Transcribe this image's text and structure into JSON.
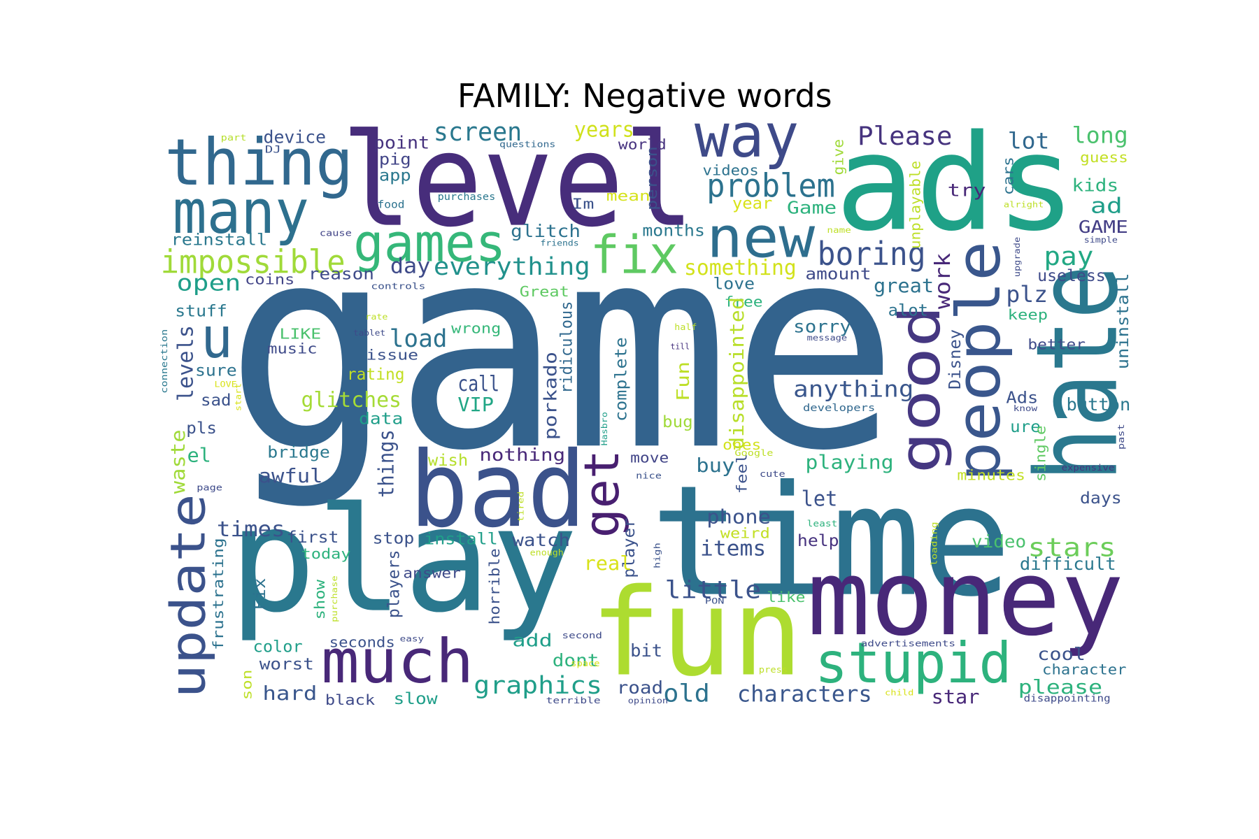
{
  "chart_data": {
    "type": "wordcloud",
    "title": "FAMILY: Negative words",
    "words": [
      "game",
      "level",
      "ads",
      "time",
      "play",
      "fun",
      "money",
      "bad",
      "hate",
      "people",
      "good",
      "thing",
      "many",
      "way",
      "games",
      "new",
      "fix",
      "u",
      "get",
      "update",
      "much",
      "stupid",
      "impossible",
      "problem",
      "boring",
      "screen",
      "Please",
      "lot",
      "long",
      "years",
      "point",
      "device",
      "pig",
      "app",
      "videos",
      "world",
      "person",
      "give",
      "guess",
      "kids",
      "try",
      "cars",
      "Im",
      "mean",
      "year",
      "Game",
      "ad",
      "GAME",
      "unplayable",
      "glitch",
      "months",
      "reinstall",
      "pay",
      "day",
      "everything",
      "something",
      "open",
      "coins",
      "reason",
      "amount",
      "work",
      "great",
      "plz",
      "useless",
      "uninstall",
      "love",
      "Great",
      "free",
      "stuff",
      "alot",
      "keep",
      "levels",
      "LIKE",
      "music",
      "wrong",
      "load",
      "issue",
      "sorry",
      "disappointed",
      "ridiculous",
      "porkado",
      "complete",
      "Fun",
      "Disney",
      "better",
      "sure",
      "rating",
      "call",
      "VIP",
      "anything",
      "glitches",
      "sad",
      "Ads",
      "button",
      "data",
      "bug",
      "ure",
      "pls",
      "waste",
      "things",
      "el",
      "bridge",
      "nothing",
      "wish",
      "move",
      "buy",
      "playing",
      "ones",
      "single",
      "awful",
      "minutes",
      "days",
      "feel",
      "phone",
      "let",
      "weird",
      "times",
      "first",
      "stop",
      "install",
      "watch",
      "items",
      "help",
      "video",
      "stars",
      "today",
      "frustrating",
      "player",
      "real",
      "little",
      "difficult",
      "answer",
      "players",
      "horrible",
      "Fix",
      "show",
      "like",
      "add",
      "color",
      "seconds",
      "bit",
      "dont",
      "cool",
      "character",
      "worst",
      "graphics",
      "road",
      "old",
      "characters",
      "please",
      "star",
      "hard",
      "black",
      "slow",
      "son",
      "part",
      "DJ",
      "questions",
      "purchases",
      "food",
      "cause",
      "friends",
      "controls",
      "name",
      "alright",
      "simple",
      "upgrade",
      "rate",
      "tablet",
      "half",
      "till",
      "message",
      "connection",
      "LOVE",
      "start",
      "developers",
      "know",
      "Hasbro",
      "Google",
      "past",
      "cute",
      "expensive",
      "nice",
      "page",
      "tired",
      "least",
      "enough",
      "high",
      "loading",
      "PON",
      "purchase",
      "second",
      "easy",
      "advertisements",
      "space",
      "press",
      "child",
      "terrible",
      "opinion",
      "disappointing"
    ],
    "colors": [
      "#33638d",
      "#472d7b",
      "#1fa187",
      "#2c728e",
      "#2a788e",
      "#addc30",
      "#482878",
      "#3b528b",
      "#2a788e",
      "#39568c",
      "#453781",
      "#31688e",
      "#2d708e",
      "#3e4a89",
      "#35b779",
      "#2e6e8e",
      "#5ec962",
      "#31688e",
      "#481f70",
      "#3b528b",
      "#482878",
      "#2db27d",
      "#a0da39",
      "#2c728e",
      "#3b528b",
      "#2a788e",
      "#46337e",
      "#31688e",
      "#4ac16d",
      "#d0e11c",
      "#46327e",
      "#3b528b",
      "#414487",
      "#2a788e",
      "#2c728e",
      "#46327e",
      "#3b528b",
      "#a0da39",
      "#c2df23",
      "#2db27d",
      "#482878",
      "#2c728e",
      "#3b528b",
      "#d5e21a",
      "#d8e219",
      "#2db27d",
      "#1f9e89",
      "#433e85",
      "#bddf26",
      "#2c728e",
      "#2a788e",
      "#2a788e",
      "#22a884",
      "#3e4a89",
      "#21918c",
      "#d2e21b",
      "#1f9e89",
      "#414487",
      "#3e4a89",
      "#3e4a89",
      "#482878",
      "#2c728e",
      "#3b528b",
      "#3e4a89",
      "#2c728e",
      "#2c728e",
      "#5ec962",
      "#2db27d",
      "#2a788e",
      "#2c728e",
      "#2db27d",
      "#3b528b",
      "#4ac16d",
      "#3e4a89",
      "#35b779",
      "#2c728e",
      "#3b528b",
      "#2c728e",
      "#b8de29",
      "#31688e",
      "#3b528b",
      "#2c728e",
      "#bddf26",
      "#3b528b",
      "#3e4a89",
      "#2c728e",
      "#c2df23",
      "#3b528b",
      "#21a685",
      "#39568c",
      "#a5db36",
      "#3b528b",
      "#3b528b",
      "#2a788e",
      "#1f9e89",
      "#a0da39",
      "#1f9e89",
      "#3b528b",
      "#a0da39",
      "#3b528b",
      "#2db27d",
      "#2a788e",
      "#482878",
      "#b5de2b",
      "#414487",
      "#2c728e",
      "#2db27d",
      "#d2e21b",
      "#5ec962",
      "#3b528b",
      "#c2df23",
      "#3b528b",
      "#3b528b",
      "#3b528b",
      "#3b528b",
      "#c2df23",
      "#3b528b",
      "#3b528b",
      "#3b528b",
      "#1f9e89",
      "#3b528b",
      "#3b528b",
      "#46327e",
      "#4ac16d",
      "#6ccd5a",
      "#2db27d",
      "#2c728e",
      "#3b528b",
      "#d8e219",
      "#3b528b",
      "#2a788e",
      "#3e4a89",
      "#3b528b",
      "#3b528b",
      "#2c728e",
      "#2db27d",
      "#4ac16d",
      "#1f9e89",
      "#1f9e89",
      "#3b528b",
      "#3b528b",
      "#2db27d",
      "#3b528b",
      "#2c728e",
      "#3b528b",
      "#1f9e89",
      "#3b528b",
      "#2c728e",
      "#39568c",
      "#2db27d",
      "#482878",
      "#39568c",
      "#3e4a89",
      "#1f9e89",
      "#bddf26",
      "#b5de2b",
      "#3b528b",
      "#31688e",
      "#2a788e",
      "#2c728e",
      "#414487",
      "#2c728e",
      "#3b528b",
      "#bddf26",
      "#bddf26",
      "#3e4a89",
      "#3e4a89",
      "#bddf26",
      "#3e4a89",
      "#bddf26",
      "#46327e",
      "#3e4a89",
      "#2a788e",
      "#d8e219",
      "#d8e219",
      "#31688e",
      "#3e4a89",
      "#1f9e89",
      "#bddf26",
      "#3e4a89",
      "#3e4a89",
      "#46327e",
      "#3b528b",
      "#3e4a89",
      "#bddf26",
      "#2db27d",
      "#bddf26",
      "#3b528b",
      "#bddf26",
      "#3b528b",
      "#bddf26",
      "#3e4a89",
      "#3e4a89",
      "#3e4a89",
      "#d8e219",
      "#bddf26",
      "#d8e219",
      "#3e4a89",
      "#3e4a89",
      "#3e4a89"
    ]
  }
}
